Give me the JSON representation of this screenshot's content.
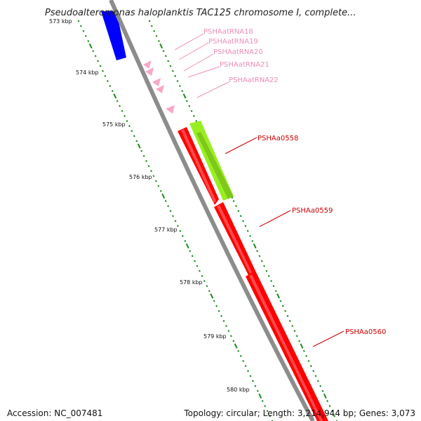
{
  "title": "Pseudoalteromonas haloplanktis TAC125 chromosome I, complete...",
  "ruler": {
    "ticks": [
      "573 kbp",
      "574 kbp",
      "575 kbp",
      "576 kbp",
      "577 kbp",
      "578 kbp",
      "579 kbp",
      "580 kbp"
    ]
  },
  "features": {
    "trna_labels": [
      "PSHAatRNA18",
      "PSHAatRNA19",
      "PSHAatRNA20",
      "PSHAatRNA21",
      "PSHAatRNA22"
    ],
    "cds_labels": [
      "PSHAa0558",
      "PSHAa0559",
      "PSHAa0560"
    ]
  },
  "colors": {
    "backbone": "#8c8c8c",
    "cds": "#ff0000",
    "orf": "#99ee22",
    "upstream_gene": "#0000ff",
    "trna": "#f7a8c8",
    "trna_label": "#f08cb8",
    "cds_label": "#cc0000",
    "dotted_track": "#1a8a1a"
  },
  "footer": {
    "accession": "Accession: NC_007481",
    "summary": "Topology: circular; Length: 3,214,944 bp; Genes: 3,073"
  }
}
